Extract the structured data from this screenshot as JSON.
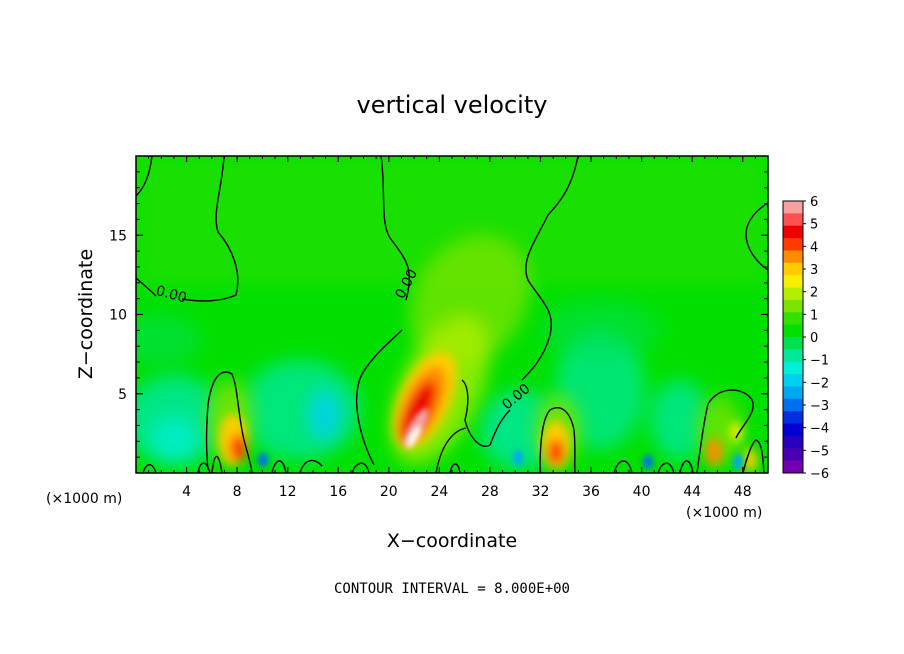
{
  "chart_data": {
    "type": "heatmap",
    "title": "vertical velocity",
    "xlabel": "X−coordinate",
    "ylabel": "Z−coordinate",
    "x_unit_left": "(×1000 m)",
    "x_unit_right": "(×1000 m)",
    "xlim": [
      0,
      50
    ],
    "ylim": [
      0,
      20
    ],
    "xticks": [
      "4",
      "8",
      "12",
      "16",
      "20",
      "24",
      "28",
      "32",
      "36",
      "40",
      "44",
      "48"
    ],
    "xtick_values": [
      4,
      8,
      12,
      16,
      20,
      24,
      28,
      32,
      36,
      40,
      44,
      48
    ],
    "yticks": [
      "5",
      "10",
      "15"
    ],
    "ytick_values": [
      5,
      10,
      15
    ],
    "footer": "CONTOUR INTERVAL = 8.000E+00",
    "contour_labels": [
      {
        "text": "0.00",
        "x": 2.7,
        "y": 11.0
      },
      {
        "text": "0.00",
        "x": 21.7,
        "y": 11.8
      },
      {
        "text": "0.00",
        "x": 30.3,
        "y": 4.6
      }
    ],
    "colorbar": {
      "ticks": [
        "6",
        "5",
        "4",
        "3",
        "2",
        "1",
        "0",
        "−1",
        "−2",
        "−3",
        "−4",
        "−5",
        "−6"
      ],
      "colors": [
        "#f6a0a0",
        "#ff5050",
        "#ee0000",
        "#ff3a00",
        "#ff8c00",
        "#ffcc00",
        "#f6f000",
        "#b4ee00",
        "#78e400",
        "#34e000",
        "#00e000",
        "#00e050",
        "#00e89a",
        "#00f0d8",
        "#00d0f0",
        "#00a8f0",
        "#0070f0",
        "#0030e0",
        "#0000d0",
        "#2800c0",
        "#4a00b0",
        "#7000b0"
      ]
    },
    "features": [
      {
        "x": 22.2,
        "z": 1.5,
        "max": 6.0,
        "desc": "main updraft"
      },
      {
        "x": 8.4,
        "z": 1.6,
        "max": 4.8
      },
      {
        "x": 33.0,
        "z": 1.6,
        "max": 4.6
      },
      {
        "x": 45.8,
        "z": 1.4,
        "max": 3.2
      },
      {
        "x": 48.7,
        "z": 0.8,
        "max": 2.5
      },
      {
        "x": 10.2,
        "z": 0.7,
        "min": -3.5
      },
      {
        "x": 40.6,
        "z": 0.7,
        "min": -3.5
      },
      {
        "x": 15.2,
        "z": 3.8,
        "min": -2.3
      }
    ]
  }
}
